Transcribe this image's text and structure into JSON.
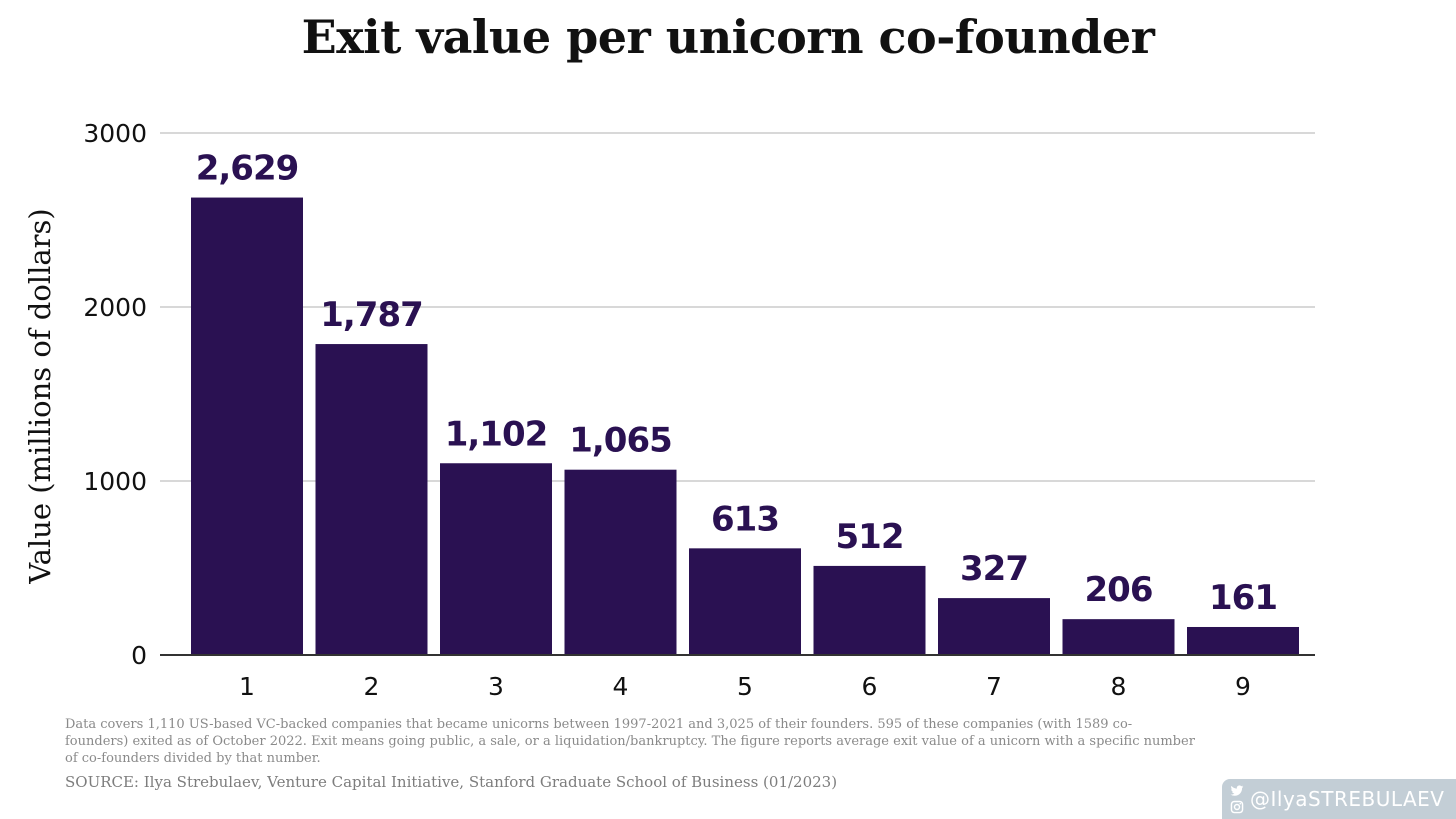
{
  "chart_data": {
    "type": "bar",
    "title": "Exit value per unicorn co-founder",
    "xlabel": "",
    "ylabel": "Value (millions of dollars)",
    "categories": [
      "1",
      "2",
      "3",
      "4",
      "5",
      "6",
      "7",
      "8",
      "9"
    ],
    "values": [
      2629,
      1787,
      1102,
      1065,
      613,
      512,
      327,
      206,
      161
    ],
    "value_labels": [
      "2,629",
      "1,787",
      "1,102",
      "1,065",
      "613",
      "512",
      "327",
      "206",
      "161"
    ],
    "ylim": [
      0,
      3000
    ],
    "yticks": [
      0,
      1000,
      2000,
      3000
    ],
    "grid": true,
    "bar_color": "#2a1152",
    "label_color": "#2a1152",
    "grid_color": "#cccccc"
  },
  "footnote": "Data covers 1,110 US-based VC-backed companies that became unicorns between 1997-2021 and 3,025 of their founders. 595 of these companies (with 1589 co-founders) exited as of October 2022. Exit means going public, a sale, or a liquidation/bankruptcy. The figure reports average exit value of a unicorn with a specific number of co-founders divided by that number.",
  "source": "SOURCE: Ilya Strebulaev, Venture Capital Initiative, Stanford Graduate School of Business (01/2023)",
  "badge": {
    "handle": "@IlyaSTREBULAEV",
    "icons": [
      "twitter-icon",
      "instagram-icon"
    ]
  }
}
